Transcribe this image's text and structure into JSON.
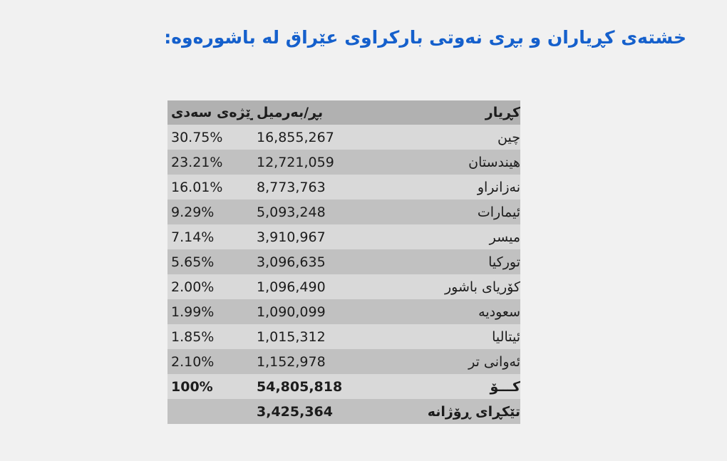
{
  "colors": {
    "page_background": "#f1f1f1",
    "title": "#1560cc",
    "table_header_bg": "#b1b1b1",
    "row_light": "#d9d9d9",
    "row_dark": "#c1c1c1",
    "text": "#1c1c1c"
  },
  "title": {
    "text": "خشتەی کڕیاران و بڕی نەوتی بارکراوی عێراق لە باشورەوە:"
  },
  "table": {
    "columns": [
      {
        "key": "buyer",
        "label": "کڕیار"
      },
      {
        "key": "barrels",
        "label": "بڕ/بەرمیل"
      },
      {
        "key": "percent",
        "label": "ڕێژەی سەدی"
      }
    ],
    "rows": [
      {
        "buyer": "چین",
        "barrels": "16,855,267",
        "percent": "30.75%"
      },
      {
        "buyer": "هیندستان",
        "barrels": "12,721,059",
        "percent": "23.21%"
      },
      {
        "buyer": "نەزانراو",
        "barrels": "8,773,763",
        "percent": "16.01%"
      },
      {
        "buyer": "ئیمارات",
        "barrels": "5,093,248",
        "percent": "9.29%"
      },
      {
        "buyer": "میسر",
        "barrels": "3,910,967",
        "percent": "7.14%"
      },
      {
        "buyer": "تورکیا",
        "barrels": "3,096,635",
        "percent": "5.65%"
      },
      {
        "buyer": "کۆریای باشور",
        "barrels": "1,096,490",
        "percent": "2.00%"
      },
      {
        "buyer": "سعودیه",
        "barrels": "1,090,099",
        "percent": "1.99%"
      },
      {
        "buyer": "ئیتالیا",
        "barrels": "1,015,312",
        "percent": "1.85%"
      },
      {
        "buyer": "ئەوانی تر",
        "barrels": "1,152,978",
        "percent": "2.10%"
      }
    ],
    "total_row": {
      "buyer": "کـــۆ",
      "barrels": "54,805,818",
      "percent": "100%"
    },
    "average_row": {
      "buyer": "تێکڕای ڕۆژانە",
      "barrels": "3,425,364",
      "percent": ""
    }
  }
}
